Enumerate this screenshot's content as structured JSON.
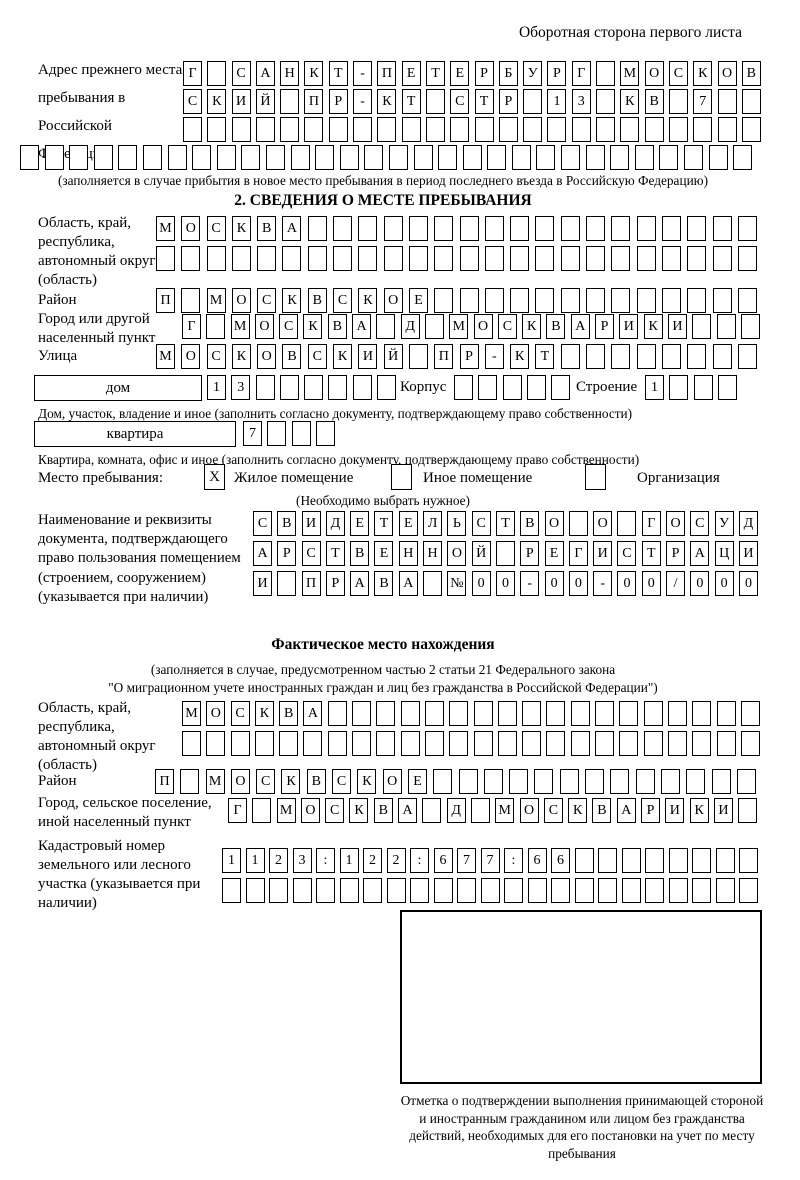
{
  "page": {
    "side_title": "Оборотная сторона первого листа"
  },
  "prev_address": {
    "label": "Адрес прежнего места пребывания в Российской Федерации",
    "rows": [
      [
        "Г",
        "",
        "С",
        "А",
        "Н",
        "К",
        "Т",
        "-",
        "П",
        "Е",
        "Т",
        "Е",
        "Р",
        "Б",
        "У",
        "Р",
        "Г",
        "",
        "М",
        "О",
        "С",
        "К",
        "О",
        "В"
      ],
      [
        "С",
        "К",
        "И",
        "Й",
        "",
        "П",
        "Р",
        "-",
        "К",
        "Т",
        "",
        "С",
        "Т",
        "Р",
        "",
        "1",
        "3",
        "",
        "К",
        "В",
        "",
        "7",
        "",
        ""
      ],
      24,
      30
    ],
    "note": "(заполняется в случае прибытия в новое место пребывания в период последнего въезда в Российскую Федерацию)"
  },
  "section2": {
    "heading": "2. СВЕДЕНИЯ О МЕСТЕ ПРЕБЫВАНИЯ",
    "region": {
      "label": "Область, край, республика, автономный округ (область)",
      "rows": [
        [
          "М",
          "О",
          "С",
          "К",
          "В",
          "А",
          "",
          "",
          "",
          "",
          "",
          "",
          "",
          "",
          "",
          "",
          "",
          "",
          "",
          "",
          "",
          "",
          "",
          ""
        ],
        24
      ]
    },
    "district": {
      "label": "Район",
      "rows": [
        [
          "П",
          "",
          "М",
          "О",
          "С",
          "К",
          "В",
          "С",
          "К",
          "О",
          "Е",
          "",
          "",
          "",
          "",
          "",
          "",
          "",
          "",
          "",
          "",
          "",
          "",
          ""
        ]
      ]
    },
    "city": {
      "label": "Город или другой населенный пункт",
      "rows": [
        [
          "Г",
          "",
          "М",
          "О",
          "С",
          "К",
          "В",
          "А",
          "",
          "Д",
          "",
          "М",
          "О",
          "С",
          "К",
          "В",
          "А",
          "Р",
          "И",
          "К",
          "И",
          "",
          "",
          ""
        ]
      ]
    },
    "street": {
      "label": "Улица",
      "rows": [
        [
          "М",
          "О",
          "С",
          "К",
          "О",
          "В",
          "С",
          "К",
          "И",
          "Й",
          "",
          "П",
          "Р",
          "-",
          "К",
          "Т",
          "",
          "",
          "",
          "",
          "",
          "",
          "",
          ""
        ]
      ]
    },
    "house_row": {
      "box_label": "дом",
      "house_cells": [
        "1",
        "3",
        "",
        "",
        "",
        "",
        "",
        ""
      ],
      "korpus_label": "Корпус",
      "korpus_cells": 5,
      "stroenie_label": "Строение",
      "stroenie_cells": [
        "1",
        "",
        "",
        ""
      ]
    },
    "house_note": "Дом, участок, владение и иное (заполнить согласно документу, подтверждающему право собственности)",
    "apartment_row": {
      "box_label": "квартира",
      "cells": [
        "7",
        "",
        "",
        ""
      ]
    },
    "apartment_note": "Квартира, комната, офис и иное (заполнить согласно документу, подтверждающему право собственности)",
    "stay_type": {
      "label": "Место пребывания:",
      "options": [
        {
          "label": "Жилое помещение",
          "checked": "X"
        },
        {
          "label": "Иное помещение",
          "checked": ""
        },
        {
          "label": "Организация",
          "checked": ""
        }
      ],
      "note": "(Необходимо выбрать нужное)"
    },
    "doc": {
      "label": "Наименование и реквизиты документа, подтверждающего право пользования помещением (строением, сооружением) (указывается при наличии)",
      "rows": [
        [
          "С",
          "В",
          "И",
          "Д",
          "Е",
          "Т",
          "Е",
          "Л",
          "Ь",
          "С",
          "Т",
          "В",
          "О",
          "",
          "О",
          "",
          "Г",
          "О",
          "С",
          "У",
          "Д"
        ],
        [
          "А",
          "Р",
          "С",
          "Т",
          "В",
          "Е",
          "Н",
          "Н",
          "О",
          "Й",
          "",
          "Р",
          "Е",
          "Г",
          "И",
          "С",
          "Т",
          "Р",
          "А",
          "Ц",
          "И"
        ],
        [
          "И",
          "",
          "П",
          "Р",
          "А",
          "В",
          "А",
          "",
          "№",
          "0",
          "0",
          "-",
          "0",
          "0",
          "-",
          "0",
          "0",
          "/",
          "0",
          "0",
          "0"
        ]
      ]
    }
  },
  "actual_location": {
    "heading": "Фактическое место нахождения",
    "note_line1": "(заполняется в случае, предусмотренном частью 2 статьи 21 Федерального закона",
    "note_line2": "\"О миграционном учете иностранных граждан и лиц без гражданства в Российской Федерации\")",
    "region": {
      "label": "Область, край, республика, автономный округ (область)",
      "rows": [
        [
          "М",
          "О",
          "С",
          "К",
          "В",
          "А",
          "",
          "",
          "",
          "",
          "",
          "",
          "",
          "",
          "",
          "",
          "",
          "",
          "",
          "",
          "",
          "",
          "",
          ""
        ],
        24
      ]
    },
    "district": {
      "label": "Район",
      "rows": [
        [
          "П",
          "",
          "М",
          "О",
          "С",
          "К",
          "В",
          "С",
          "К",
          "О",
          "Е",
          "",
          "",
          "",
          "",
          "",
          "",
          "",
          "",
          "",
          "",
          "",
          "",
          ""
        ]
      ]
    },
    "city": {
      "label": "Город, сельское поселение, иной населенный пункт",
      "rows": [
        [
          "Г",
          "",
          "М",
          "О",
          "С",
          "К",
          "В",
          "А",
          "",
          "Д",
          "",
          "М",
          "О",
          "С",
          "К",
          "В",
          "А",
          "Р",
          "И",
          "К",
          "И",
          ""
        ]
      ]
    },
    "cadastral": {
      "label": "Кадастровый номер земельного или лесного участка (указывается при наличии)",
      "rows": [
        [
          "1",
          "1",
          "2",
          "3",
          ":",
          "1",
          "2",
          "2",
          ":",
          "6",
          "7",
          "7",
          ":",
          "6",
          "6",
          "",
          "",
          "",
          "",
          "",
          "",
          "",
          ""
        ],
        23
      ]
    }
  },
  "confirmation": {
    "note": "Отметка о подтверждении выполнения принимающей стороной и иностранным гражданином или лицом без гражданства действий, необходимых для его постановки на учет по месту пребывания"
  }
}
